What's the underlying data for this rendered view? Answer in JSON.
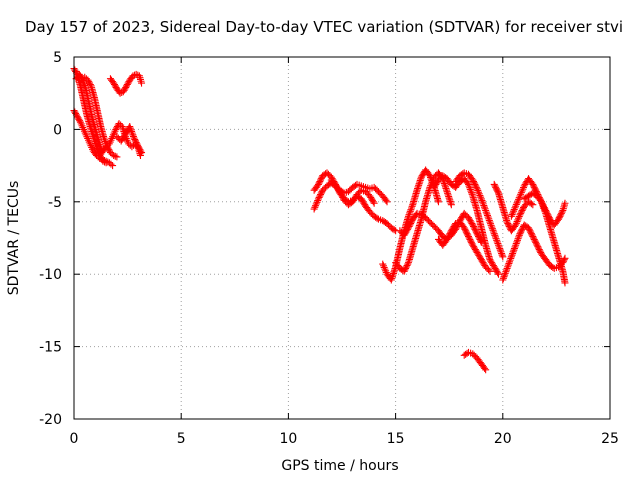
{
  "chart_data": {
    "type": "scatter",
    "title": "Day 157 of 2023, Sidereal Day-to-day VTEC variation (SDTVAR) for receiver stvi",
    "xlabel": "GPS time / hours",
    "ylabel": "SDTVAR / TECUs",
    "xlim": [
      0,
      25
    ],
    "ylim": [
      -20,
      5
    ],
    "xticks": [
      0,
      5,
      10,
      15,
      20,
      25
    ],
    "yticks": [
      -20,
      -15,
      -10,
      -5,
      0,
      5
    ],
    "xtick_labels": [
      "0",
      "5",
      "10",
      "15",
      "20",
      "25"
    ],
    "ytick_labels": [
      "-20",
      "-15",
      "-10",
      "-5",
      "0",
      "5"
    ],
    "grid": true,
    "marker": "+",
    "color": "#ff0000",
    "series": [
      {
        "name": "trace-1",
        "x": [
          0.0,
          0.15,
          0.3,
          0.45,
          0.6,
          0.75,
          0.9,
          1.05,
          1.2,
          1.35,
          1.5
        ],
        "y": [
          4.2,
          3.8,
          3.0,
          2.0,
          1.0,
          0.2,
          -0.5,
          -1.2,
          -1.8,
          -2.2,
          -2.3
        ]
      },
      {
        "name": "trace-2",
        "x": [
          0.0,
          0.15,
          0.3,
          0.45,
          0.6,
          0.75,
          0.9,
          1.05,
          1.2,
          1.35,
          1.5,
          1.65,
          1.8
        ],
        "y": [
          1.3,
          0.9,
          0.5,
          0.0,
          -0.5,
          -1.0,
          -1.5,
          -1.8,
          -2.0,
          -2.1,
          -2.2,
          -2.3,
          -2.5
        ]
      },
      {
        "name": "trace-3",
        "x": [
          0.1,
          0.25,
          0.4,
          0.55,
          0.7,
          0.85,
          1.0,
          1.15,
          1.3
        ],
        "y": [
          3.5,
          3.8,
          3.5,
          2.8,
          1.8,
          0.8,
          0.0,
          -0.8,
          -1.5
        ]
      },
      {
        "name": "trace-4",
        "x": [
          0.5,
          0.65,
          0.8,
          0.95,
          1.1,
          1.25,
          1.4,
          1.55,
          1.7,
          1.85,
          2.0
        ],
        "y": [
          3.6,
          3.4,
          3.0,
          2.2,
          1.2,
          0.2,
          -0.6,
          -1.2,
          -1.6,
          -1.8,
          -1.9
        ]
      },
      {
        "name": "trace-5",
        "x": [
          1.2,
          1.35,
          1.5,
          1.65,
          1.8,
          1.95,
          2.1,
          2.25,
          2.4,
          2.55,
          2.7,
          2.85,
          3.0,
          3.1
        ],
        "y": [
          -1.8,
          -1.5,
          -1.2,
          -1.0,
          -0.5,
          0.0,
          0.4,
          0.2,
          -0.5,
          -1.0,
          -1.2,
          -1.0,
          -1.3,
          -1.8
        ]
      },
      {
        "name": "trace-6",
        "x": [
          1.7,
          1.85,
          2.0,
          2.15,
          2.3,
          2.45,
          2.6,
          2.75,
          2.9,
          3.05,
          3.15
        ],
        "y": [
          3.5,
          3.2,
          2.8,
          2.5,
          2.6,
          3.0,
          3.4,
          3.7,
          3.8,
          3.7,
          3.2
        ]
      },
      {
        "name": "trace-7",
        "x": [
          2.0,
          2.2,
          2.4,
          2.6,
          2.8,
          3.0,
          3.15
        ],
        "y": [
          -0.5,
          -0.8,
          -0.3,
          0.2,
          -0.6,
          -1.2,
          -1.6
        ]
      },
      {
        "name": "trace-8",
        "x": [
          11.2,
          11.4,
          11.6,
          11.8,
          12.0,
          12.2,
          12.4,
          12.6,
          12.8,
          13.0,
          13.2,
          13.4,
          13.6,
          13.8,
          14.0,
          14.2,
          14.4,
          14.6
        ],
        "y": [
          -5.5,
          -4.8,
          -4.2,
          -3.9,
          -3.7,
          -3.9,
          -4.2,
          -4.4,
          -4.3,
          -4.0,
          -3.8,
          -3.9,
          -4.0,
          -4.1,
          -4.0,
          -4.3,
          -4.6,
          -5.0
        ]
      },
      {
        "name": "trace-9",
        "x": [
          11.2,
          11.4,
          11.6,
          11.8,
          12.0,
          12.2,
          12.4,
          12.6,
          12.8,
          13.0,
          13.2,
          13.4,
          13.6,
          13.8,
          14.0,
          14.2,
          14.4,
          14.6,
          14.8,
          15.0
        ],
        "y": [
          -4.2,
          -3.8,
          -3.2,
          -3.0,
          -3.3,
          -3.8,
          -4.4,
          -4.8,
          -5.0,
          -4.9,
          -4.6,
          -4.8,
          -5.3,
          -5.7,
          -6.0,
          -6.2,
          -6.3,
          -6.5,
          -6.8,
          -7.0
        ]
      },
      {
        "name": "trace-10",
        "x": [
          12.0,
          12.2,
          12.4,
          12.6,
          12.8,
          13.0,
          13.2,
          13.4,
          13.6,
          13.8,
          14.0
        ],
        "y": [
          -3.5,
          -3.9,
          -4.3,
          -4.9,
          -5.2,
          -5.0,
          -4.5,
          -4.2,
          -4.3,
          -4.6,
          -5.1
        ]
      },
      {
        "name": "trace-11",
        "x": [
          14.4,
          14.6,
          14.8,
          15.0,
          15.2,
          15.4,
          15.6,
          15.8,
          16.0,
          16.2,
          16.4,
          16.6,
          16.8,
          17.0
        ],
        "y": [
          -9.3,
          -10.0,
          -10.4,
          -9.5,
          -8.2,
          -7.0,
          -6.0,
          -5.2,
          -4.2,
          -3.3,
          -2.8,
          -3.2,
          -4.0,
          -5.0
        ]
      },
      {
        "name": "trace-12",
        "x": [
          15.0,
          15.2,
          15.4,
          15.6,
          15.8,
          16.0,
          16.2,
          16.4,
          16.6,
          16.8,
          17.0,
          17.2,
          17.4,
          17.6
        ],
        "y": [
          -9.2,
          -9.6,
          -9.8,
          -9.2,
          -8.2,
          -7.2,
          -6.2,
          -5.0,
          -4.0,
          -3.3,
          -3.0,
          -3.4,
          -4.3,
          -5.2
        ]
      },
      {
        "name": "trace-13",
        "x": [
          15.2,
          15.4,
          15.6,
          15.8,
          16.0,
          16.2,
          16.4,
          16.6,
          16.8,
          17.0,
          17.2,
          17.4,
          17.6,
          17.8,
          18.0,
          18.2,
          18.4,
          18.6,
          18.8,
          19.0
        ],
        "y": [
          -7.0,
          -7.3,
          -6.8,
          -6.2,
          -5.8,
          -5.9,
          -6.1,
          -6.4,
          -6.7,
          -7.0,
          -7.4,
          -7.6,
          -7.3,
          -6.9,
          -6.3,
          -5.8,
          -6.1,
          -6.6,
          -7.2,
          -7.8
        ]
      },
      {
        "name": "trace-14",
        "x": [
          16.8,
          17.0,
          17.2,
          17.4,
          17.6,
          17.8,
          18.0,
          18.2,
          18.4,
          18.6,
          18.8,
          19.0,
          19.2,
          19.4,
          19.6,
          19.8
        ],
        "y": [
          -4.0,
          -3.5,
          -3.2,
          -3.4,
          -3.8,
          -4.0,
          -3.6,
          -3.4,
          -3.8,
          -4.6,
          -5.6,
          -6.8,
          -8.0,
          -9.0,
          -9.5,
          -10.0
        ]
      },
      {
        "name": "trace-15",
        "x": [
          17.0,
          17.2,
          17.4,
          17.6,
          17.8,
          18.0,
          18.2,
          18.4,
          18.6,
          18.8,
          19.0,
          19.2,
          19.4
        ],
        "y": [
          -7.6,
          -8.0,
          -7.6,
          -7.0,
          -6.5,
          -6.4,
          -6.8,
          -7.4,
          -8.0,
          -8.5,
          -9.0,
          -9.5,
          -9.8
        ]
      },
      {
        "name": "trace-16",
        "x": [
          17.8,
          18.0,
          18.2,
          18.4,
          18.6,
          18.8,
          19.0,
          19.2,
          19.4,
          19.6,
          19.8,
          20.0
        ],
        "y": [
          -3.6,
          -3.2,
          -3.0,
          -3.1,
          -3.5,
          -4.1,
          -4.8,
          -5.6,
          -6.4,
          -7.2,
          -8.0,
          -8.8
        ]
      },
      {
        "name": "trace-17",
        "x": [
          19.6,
          19.8,
          20.0,
          20.2,
          20.4,
          20.6,
          20.8,
          21.0,
          21.2,
          21.4
        ],
        "y": [
          -3.8,
          -4.4,
          -5.4,
          -6.4,
          -7.0,
          -6.6,
          -5.9,
          -5.3,
          -5.0,
          -5.2
        ]
      },
      {
        "name": "trace-18",
        "x": [
          20.0,
          20.2,
          20.4,
          20.6,
          20.8,
          21.0,
          21.2,
          21.4,
          21.6,
          21.8,
          22.0,
          22.2,
          22.4,
          22.6,
          22.8,
          22.9
        ],
        "y": [
          -10.4,
          -9.6,
          -8.8,
          -8.0,
          -7.2,
          -6.6,
          -6.8,
          -7.4,
          -8.0,
          -8.6,
          -9.0,
          -9.4,
          -9.6,
          -9.5,
          -9.2,
          -8.9
        ]
      },
      {
        "name": "trace-19",
        "x": [
          20.4,
          20.6,
          20.8,
          21.0,
          21.2,
          21.4,
          21.6,
          21.8,
          22.0,
          22.2,
          22.4,
          22.6,
          22.8,
          22.9
        ],
        "y": [
          -6.0,
          -5.3,
          -4.6,
          -3.9,
          -3.4,
          -3.8,
          -4.4,
          -5.0,
          -5.8,
          -6.8,
          -7.8,
          -8.8,
          -9.8,
          -10.6
        ]
      },
      {
        "name": "trace-20",
        "x": [
          21.0,
          21.2,
          21.4,
          21.6,
          21.8,
          22.0,
          22.2,
          22.4,
          22.6,
          22.8,
          22.9
        ],
        "y": [
          -4.8,
          -4.6,
          -4.4,
          -4.6,
          -5.0,
          -5.6,
          -6.2,
          -6.6,
          -6.2,
          -5.6,
          -5.1
        ]
      },
      {
        "name": "trace-21",
        "x": [
          18.2,
          18.4,
          18.6,
          18.8,
          19.0,
          19.2
        ],
        "y": [
          -15.6,
          -15.4,
          -15.5,
          -15.8,
          -16.2,
          -16.6
        ]
      }
    ]
  }
}
